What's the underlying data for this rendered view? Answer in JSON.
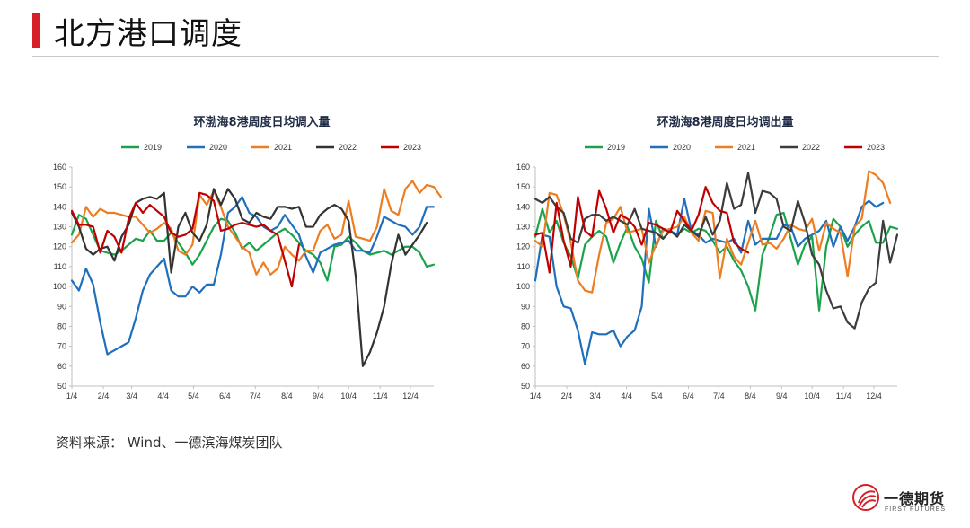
{
  "page": {
    "title": "北方港口调度",
    "source": "资料来源：  Wind、一德滨海煤炭团队",
    "accent": "#d61f26"
  },
  "logo": {
    "name": "一德期货",
    "sub": "FIRST FUTURES"
  },
  "chart_data": [
    {
      "type": "line",
      "title": "环渤海8港周度日均调入量",
      "ylim": [
        50,
        160
      ],
      "yticks": [
        50,
        60,
        70,
        80,
        90,
        100,
        110,
        120,
        130,
        140,
        150,
        160
      ],
      "xlim": [
        0,
        51
      ],
      "xticks": [
        {
          "label": "1/4",
          "pos": 0
        },
        {
          "label": "2/4",
          "pos": 4.43
        },
        {
          "label": "3/4",
          "pos": 8.43
        },
        {
          "label": "4/4",
          "pos": 12.86
        },
        {
          "label": "5/4",
          "pos": 17.14
        },
        {
          "label": "6/4",
          "pos": 21.57
        },
        {
          "label": "7/4",
          "pos": 25.86
        },
        {
          "label": "8/4",
          "pos": 30.29
        },
        {
          "label": "9/4",
          "pos": 34.71
        },
        {
          "label": "10/4",
          "pos": 39
        },
        {
          "label": "11/4",
          "pos": 43.43
        },
        {
          "label": "12/4",
          "pos": 47.71
        }
      ],
      "series": [
        {
          "name": "2019",
          "color": "#1aa34a",
          "values": [
            126,
            136,
            134,
            126,
            118,
            117,
            116,
            118,
            121,
            124,
            123,
            128,
            123,
            123,
            127,
            122,
            117,
            111,
            116,
            123,
            130,
            134,
            133,
            127,
            119,
            122,
            118,
            121,
            124,
            127,
            129,
            126,
            122,
            118,
            116,
            112,
            103,
            120,
            121,
            125,
            122,
            118,
            116,
            117,
            118,
            116,
            118,
            120,
            120,
            117,
            110,
            111
          ]
        },
        {
          "name": "2020",
          "color": "#1f6fbd",
          "values": [
            103,
            98,
            109,
            101,
            82,
            66,
            68,
            70,
            72,
            84,
            98,
            106,
            110,
            114,
            98,
            95,
            95,
            100,
            97,
            101,
            101,
            116,
            137,
            140,
            145,
            137,
            135,
            130,
            128,
            130,
            136,
            131,
            126,
            115,
            107,
            117,
            119,
            121,
            122,
            123,
            118,
            118,
            117,
            125,
            135,
            133,
            131,
            130,
            126,
            130,
            140,
            140
          ]
        },
        {
          "name": "2021",
          "color": "#ed7d22",
          "values": [
            122,
            126,
            140,
            135,
            139,
            137,
            137,
            136,
            135,
            135,
            131,
            127,
            129,
            132,
            129,
            118,
            116,
            121,
            146,
            141,
            148,
            140,
            130,
            125,
            120,
            117,
            106,
            112,
            106,
            109,
            120,
            116,
            113,
            118,
            118,
            128,
            131,
            124,
            126,
            143,
            125,
            124,
            123,
            130,
            149,
            138,
            136,
            149,
            153,
            147,
            151,
            150,
            145
          ]
        },
        {
          "name": "2022",
          "color": "#333333",
          "values": [
            137,
            130,
            119,
            116,
            119,
            120,
            113,
            125,
            131,
            142,
            144,
            145,
            144,
            147,
            107,
            130,
            137,
            127,
            123,
            131,
            149,
            141,
            149,
            144,
            134,
            132,
            137,
            135,
            134,
            140,
            140,
            139,
            140,
            130,
            130,
            136,
            139,
            141,
            139,
            133,
            105,
            60,
            67,
            77,
            90,
            111,
            126,
            116,
            121,
            126,
            132
          ]
        },
        {
          "name": "2023",
          "color": "#c00000",
          "values": [
            138,
            131,
            131,
            130,
            117,
            128,
            125,
            117,
            134,
            142,
            137,
            141,
            138,
            135,
            127,
            125,
            126,
            129,
            147,
            146,
            143,
            128,
            129,
            131,
            132,
            131,
            130,
            131,
            128,
            126,
            113,
            100,
            121
          ]
        }
      ]
    },
    {
      "type": "line",
      "title": "环渤海8港周度日均调出量",
      "ylim": [
        50,
        160
      ],
      "yticks": [
        50,
        60,
        70,
        80,
        90,
        100,
        110,
        120,
        130,
        140,
        150,
        160
      ],
      "xlim": [
        0,
        51
      ],
      "xticks": [
        {
          "label": "1/4",
          "pos": 0
        },
        {
          "label": "2/4",
          "pos": 4.43
        },
        {
          "label": "3/4",
          "pos": 8.43
        },
        {
          "label": "4/4",
          "pos": 12.86
        },
        {
          "label": "5/4",
          "pos": 17.14
        },
        {
          "label": "6/4",
          "pos": 21.57
        },
        {
          "label": "7/4",
          "pos": 25.86
        },
        {
          "label": "8/4",
          "pos": 30.29
        },
        {
          "label": "9/4",
          "pos": 34.71
        },
        {
          "label": "10/4",
          "pos": 39
        },
        {
          "label": "11/4",
          "pos": 43.43
        },
        {
          "label": "12/4",
          "pos": 47.71
        }
      ],
      "series": [
        {
          "name": "2019",
          "color": "#1aa34a",
          "values": [
            125,
            139,
            127,
            133,
            122,
            115,
            104,
            121,
            125,
            128,
            125,
            112,
            122,
            130,
            120,
            114,
            102,
            133,
            124,
            128,
            126,
            129,
            127,
            129,
            128,
            123,
            117,
            120,
            113,
            108,
            100,
            88,
            116,
            125,
            136,
            137,
            124,
            111,
            121,
            125,
            88,
            120,
            134,
            130,
            120,
            126,
            130,
            133,
            122,
            122,
            130,
            129
          ]
        },
        {
          "name": "2020",
          "color": "#1f6fbd",
          "values": [
            103,
            126,
            125,
            100,
            90,
            89,
            78,
            61,
            77,
            76,
            76,
            78,
            70,
            75,
            78,
            90,
            139,
            120,
            129,
            128,
            126,
            144,
            128,
            126,
            122,
            124,
            123,
            122,
            124,
            117,
            133,
            121,
            124,
            124,
            124,
            131,
            130,
            120,
            124,
            126,
            128,
            133,
            120,
            130,
            123,
            130,
            140,
            143,
            140,
            142
          ]
        },
        {
          "name": "2021",
          "color": "#ed7d22",
          "values": [
            123,
            120,
            147,
            146,
            136,
            122,
            103,
            98,
            97,
            116,
            132,
            134,
            140,
            127,
            128,
            129,
            112,
            121,
            128,
            129,
            130,
            135,
            127,
            123,
            138,
            137,
            104,
            124,
            115,
            111,
            122,
            133,
            121,
            122,
            119,
            124,
            131,
            129,
            128,
            134,
            118,
            132,
            129,
            127,
            105,
            130,
            134,
            158,
            156,
            152,
            142
          ]
        },
        {
          "name": "2022",
          "color": "#3c3c3c",
          "values": [
            144,
            142,
            145,
            140,
            137,
            124,
            122,
            134,
            136,
            136,
            133,
            135,
            133,
            131,
            139,
            129,
            128,
            127,
            124,
            128,
            125,
            131,
            128,
            125,
            135,
            126,
            133,
            152,
            139,
            141,
            157,
            137,
            148,
            147,
            144,
            130,
            128,
            143,
            132,
            116,
            111,
            98,
            89,
            90,
            82,
            79,
            92,
            99,
            102,
            133,
            112,
            126
          ]
        },
        {
          "name": "2023",
          "color": "#c00000",
          "values": [
            126,
            127,
            107,
            142,
            123,
            110,
            145,
            128,
            125,
            148,
            139,
            127,
            136,
            134,
            130,
            121,
            132,
            131,
            129,
            127,
            138,
            133,
            128,
            136,
            150,
            142,
            138,
            137,
            122,
            119,
            117
          ]
        }
      ]
    }
  ]
}
